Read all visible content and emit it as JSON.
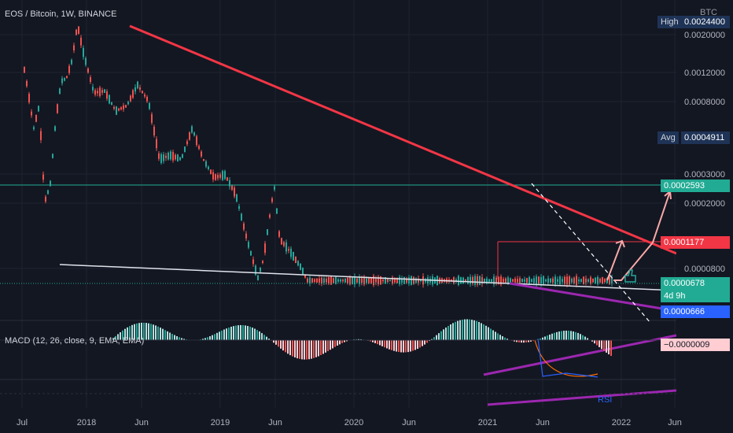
{
  "header": {
    "symbol_title": "EOS / Bitcoin, 1W, BINANCE",
    "currency_label": "BTC"
  },
  "macd_title": "MACD (12, 26, close, 9, EMA, EMA)",
  "rsi_label": "RSI",
  "price_axis": {
    "ticks": [
      "0.0020000",
      "0.0012000",
      "0.0008000",
      "0.0003000",
      "0.0002000",
      "0.0000800"
    ]
  },
  "price_tags": {
    "high_label": "High",
    "high_value": "0.0024400",
    "avg_label": "Avg",
    "avg_value": "0.0004911",
    "level_upper": "0.0002593",
    "level_red": "0.0001177",
    "last_price": "0.0000678",
    "countdown": "4d 9h",
    "low_value": "0.0000666",
    "macd_value": "−0.0000009"
  },
  "colors": {
    "background": "#131722",
    "up_candle": "#26a69a",
    "down_candle": "#ef5350",
    "trendline_red": "#f23645",
    "support_white": "#e0e3eb",
    "channel_purple": "#9c27b0",
    "level_teal": "#22ab94",
    "arrow_pink": "#f7a8a8",
    "tag_blue": "#2962ff"
  },
  "chart_data": {
    "type": "candlestick",
    "title": "EOS / Bitcoin, 1W, BINANCE",
    "y_scale": "log",
    "y_unit": "BTC",
    "x_ticks": [
      "Jul",
      "2018",
      "Jun",
      "2019",
      "Jun",
      "2020",
      "Jun",
      "2021",
      "Jun",
      "2022",
      "Jun"
    ],
    "y_ticks": [
      0.002,
      0.0012,
      0.0008,
      0.0003,
      0.0002,
      8e-05
    ],
    "price_path": [
      [
        "Jul 2017",
        0.0014
      ],
      [
        "Aug 2017",
        0.0009
      ],
      [
        "Sep 2017",
        0.00055
      ],
      [
        "Oct 2017",
        0.00075
      ],
      [
        "Nov 2017",
        0.0002
      ],
      [
        "Dec 2017",
        0.00025
      ],
      [
        "Jan 2018",
        0.0006
      ],
      [
        "Feb 2018",
        0.00105
      ],
      [
        "Mar 2018",
        0.0011
      ],
      [
        "Apr 2018",
        0.0014
      ],
      [
        "May 2018",
        0.0023
      ],
      [
        "Jun 2018",
        0.0016
      ],
      [
        "Aug 2018",
        0.0009
      ],
      [
        "Oct 2018",
        0.00092
      ],
      [
        "Dec 2018",
        0.0007
      ],
      [
        "Feb 2019",
        0.00075
      ],
      [
        "Apr 2019",
        0.001
      ],
      [
        "Jun 2019",
        0.0008
      ],
      [
        "Aug 2019",
        0.00036
      ],
      [
        "Oct 2019",
        0.00038
      ],
      [
        "Dec 2019",
        0.00036
      ],
      [
        "Feb 2020",
        0.00055
      ],
      [
        "Apr 2020",
        0.00036
      ],
      [
        "Jun 2020",
        0.00028
      ],
      [
        "Aug 2020",
        0.00029
      ],
      [
        "Oct 2020",
        0.00022
      ],
      [
        "Dec 2020",
        0.00012
      ],
      [
        "Feb 2021",
        7e-05
      ],
      [
        "Mar 2021",
        9e-05
      ],
      [
        "May 2021",
        0.00025
      ],
      [
        "Jun 2021",
        0.00012
      ],
      [
        "Aug 2021",
        0.0001
      ],
      [
        "Oct 2021",
        8e-05
      ],
      [
        "Nov 2021",
        6.78e-05
      ]
    ],
    "levels": [
      {
        "label": "Avg",
        "value": 0.0004911
      },
      {
        "value": 0.0002593
      },
      {
        "value": 0.0001177
      },
      {
        "value": 6.78e-05
      },
      {
        "value": 6.66e-05
      }
    ]
  }
}
